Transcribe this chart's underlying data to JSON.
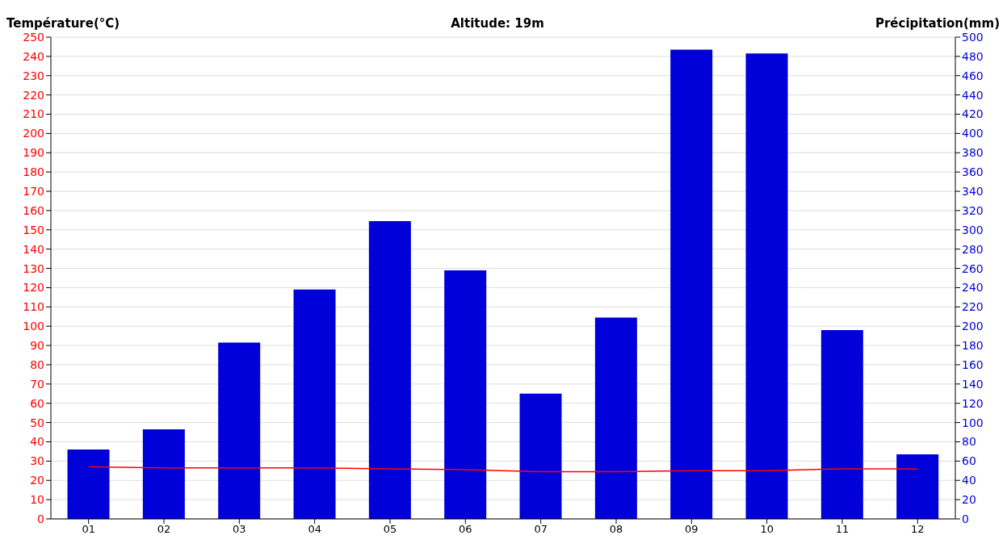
{
  "chart_data": {
    "type": "bar",
    "title": "Altitude: 19m",
    "ylabel": "Température(°C)",
    "y2label": "Précipitation(mm)",
    "categories": [
      "01",
      "02",
      "03",
      "04",
      "05",
      "06",
      "07",
      "08",
      "09",
      "10",
      "11",
      "12"
    ],
    "series": [
      {
        "axis": "y2",
        "color": "#0000d8",
        "values": [
          72,
          93,
          183,
          238,
          309,
          258,
          130,
          209,
          487,
          483,
          196,
          67
        ]
      },
      {
        "type": "line",
        "axis": "y",
        "color": "#ff0000",
        "values": [
          27,
          26.5,
          26.5,
          26.5,
          26,
          25.5,
          24.5,
          24.5,
          25,
          25,
          26,
          26
        ]
      }
    ],
    "ylim": [
      0,
      250
    ],
    "yticks": [
      0,
      10,
      20,
      30,
      40,
      50,
      60,
      70,
      80,
      90,
      100,
      110,
      120,
      130,
      140,
      150,
      160,
      170,
      180,
      190,
      200,
      210,
      220,
      230,
      240,
      250
    ],
    "y2lim": [
      0,
      500
    ],
    "y2ticks": [
      0,
      20,
      40,
      60,
      80,
      100,
      120,
      140,
      160,
      180,
      200,
      220,
      240,
      260,
      280,
      300,
      320,
      340,
      360,
      380,
      400,
      420,
      440,
      460,
      480,
      500
    ],
    "grid": "y",
    "marker": "none",
    "line_style": "solid"
  }
}
